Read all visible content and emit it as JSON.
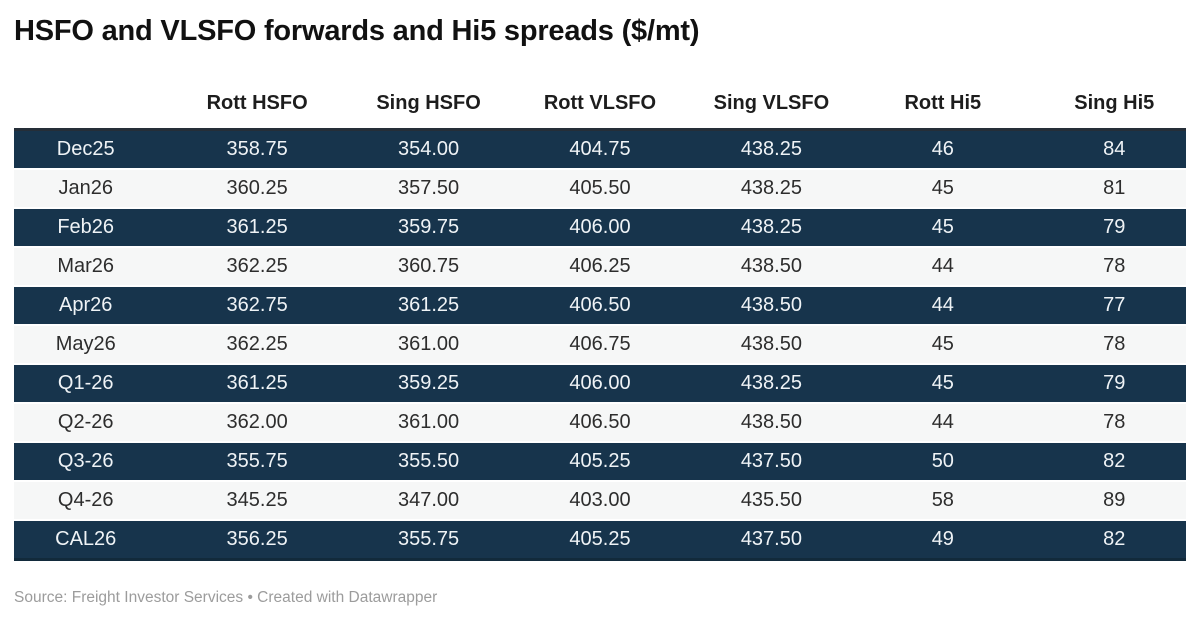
{
  "title": "HSFO and VLSFO forwards and Hi5 spreads ($/mt)",
  "chart_data": {
    "type": "table",
    "title": "HSFO and VLSFO forwards and Hi5 spreads ($/mt)",
    "columns": [
      "",
      "Rott HSFO",
      "Sing HSFO",
      "Rott VLSFO",
      "Sing VLSFO",
      "Rott Hi5",
      "Sing Hi5"
    ],
    "rows": [
      {
        "label": "Dec25",
        "values": [
          "358.75",
          "354.00",
          "404.75",
          "438.25",
          "46",
          "84"
        ]
      },
      {
        "label": "Jan26",
        "values": [
          "360.25",
          "357.50",
          "405.50",
          "438.25",
          "45",
          "81"
        ]
      },
      {
        "label": "Feb26",
        "values": [
          "361.25",
          "359.75",
          "406.00",
          "438.25",
          "45",
          "79"
        ]
      },
      {
        "label": "Mar26",
        "values": [
          "362.25",
          "360.75",
          "406.25",
          "438.50",
          "44",
          "78"
        ]
      },
      {
        "label": "Apr26",
        "values": [
          "362.75",
          "361.25",
          "406.50",
          "438.50",
          "44",
          "77"
        ]
      },
      {
        "label": "May26",
        "values": [
          "362.25",
          "361.00",
          "406.75",
          "438.50",
          "45",
          "78"
        ]
      },
      {
        "label": "Q1-26",
        "values": [
          "361.25",
          "359.25",
          "406.00",
          "438.25",
          "45",
          "79"
        ]
      },
      {
        "label": "Q2-26",
        "values": [
          "362.00",
          "361.00",
          "406.50",
          "438.50",
          "44",
          "78"
        ]
      },
      {
        "label": "Q3-26",
        "values": [
          "355.75",
          "355.50",
          "405.25",
          "437.50",
          "50",
          "82"
        ]
      },
      {
        "label": "Q4-26",
        "values": [
          "345.25",
          "347.00",
          "403.00",
          "435.50",
          "58",
          "89"
        ]
      },
      {
        "label": "CAL26",
        "values": [
          "356.25",
          "355.75",
          "405.25",
          "437.50",
          "49",
          "82"
        ]
      }
    ],
    "layout": {
      "striped": true,
      "first_row_style": "dark",
      "alignment": "center"
    }
  },
  "footer": {
    "source_line": "Source: Freight Investor Services • Created with Datawrapper"
  },
  "colors": {
    "title_text": "#111111",
    "header_text": "#1d1d1d",
    "dark_row_bg": "#17344c",
    "dark_row_text": "#eff3f6",
    "light_row_bg": "#f6f7f7",
    "body_text": "#2d2d2d",
    "table_top_border": "#252e38",
    "table_bottom_border": "#122a3b",
    "footer_text": "#9c9c9c"
  }
}
